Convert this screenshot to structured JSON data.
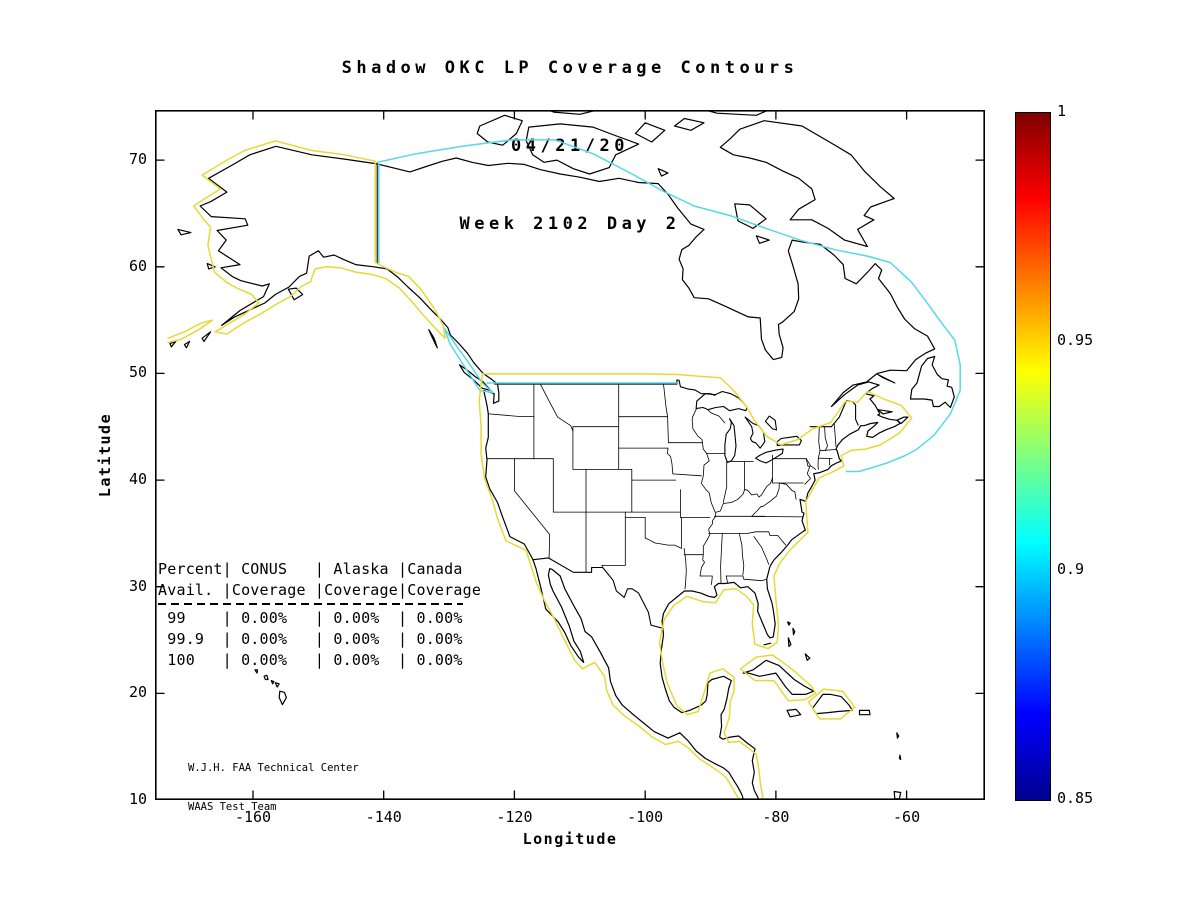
{
  "title": {
    "line1": "Shadow OKC LP Coverage Contours",
    "line2": "04/21/20",
    "line3": "Week 2102 Day 2"
  },
  "axes": {
    "xlabel": "Longitude",
    "ylabel": "Latitude",
    "xticks": [
      {
        "label": "-160",
        "lon": -160
      },
      {
        "label": "-140",
        "lon": -140
      },
      {
        "label": "-120",
        "lon": -120
      },
      {
        "label": "-100",
        "lon": -100
      },
      {
        "label": "-80",
        "lon": -80
      },
      {
        "label": "-60",
        "lon": -60
      }
    ],
    "yticks": [
      {
        "label": "70",
        "lat": 70
      },
      {
        "label": "60",
        "lat": 60
      },
      {
        "label": "50",
        "lat": 50
      },
      {
        "label": "40",
        "lat": 40
      },
      {
        "label": "30",
        "lat": 30
      },
      {
        "label": "20",
        "lat": 20
      },
      {
        "label": "10",
        "lat": 10
      }
    ]
  },
  "coverage_table": {
    "header_lines": [
      "Percent| CONUS   | Alaska |Canada",
      "Avail. |Coverage |Coverage|Coverage"
    ],
    "rows": [
      " 99    | 0.00%   | 0.00%  | 0.00%",
      " 99.9  | 0.00%   | 0.00%  | 0.00%",
      " 100   | 0.00%   | 0.00%  | 0.00%"
    ]
  },
  "credit": {
    "line1": "W.J.H. FAA Technical Center",
    "line2": "WAAS Test Team"
  },
  "colorbar": {
    "min": 0.85,
    "max": 1,
    "labels": [
      {
        "text": "1",
        "frac": 0
      },
      {
        "text": "0.95",
        "frac": 0.3333
      },
      {
        "text": "0.9",
        "frac": 0.6667
      },
      {
        "text": "0.85",
        "frac": 1
      }
    ]
  },
  "colors": {
    "contour_level_095": "#e8d836",
    "contour_level_090": "#55d8e8",
    "coastline": "#000000",
    "background": "#ffffff"
  },
  "chart_data": {
    "type": "contour-map",
    "title": "Shadow OKC LP Coverage Contours",
    "date": "04/21/20",
    "week_day": "Week 2102 Day 2",
    "xlabel": "Longitude",
    "ylabel": "Latitude",
    "xlim": [
      -175,
      -48
    ],
    "ylim": [
      10,
      74.7
    ],
    "xticks": [
      -160,
      -140,
      -120,
      -100,
      -80,
      -60
    ],
    "yticks": [
      10,
      20,
      30,
      40,
      50,
      60,
      70
    ],
    "grid": false,
    "region": "North America (CONUS, Alaska, Canada, Mexico, Caribbean)",
    "colorbar": {
      "min": 0.85,
      "max": 1,
      "ticks": [
        0.85,
        0.9,
        0.95,
        1
      ],
      "colormap": "jet",
      "position": "right"
    },
    "contour_levels": [
      {
        "level": 0.95,
        "color": "#e8d836"
      },
      {
        "level": 0.9,
        "color": "#55d8e8"
      }
    ],
    "coverage_table": {
      "columns": [
        "Percent Avail.",
        "CONUS Coverage",
        "Alaska Coverage",
        "Canada Coverage"
      ],
      "rows": [
        [
          "99",
          "0.00%",
          "0.00%",
          "0.00%"
        ],
        [
          "99.9",
          "0.00%",
          "0.00%",
          "0.00%"
        ],
        [
          "100",
          "0.00%",
          "0.00%",
          "0.00%"
        ]
      ]
    },
    "annotations": [
      "W.J.H. FAA Technical Center",
      "WAAS Test Team"
    ]
  }
}
